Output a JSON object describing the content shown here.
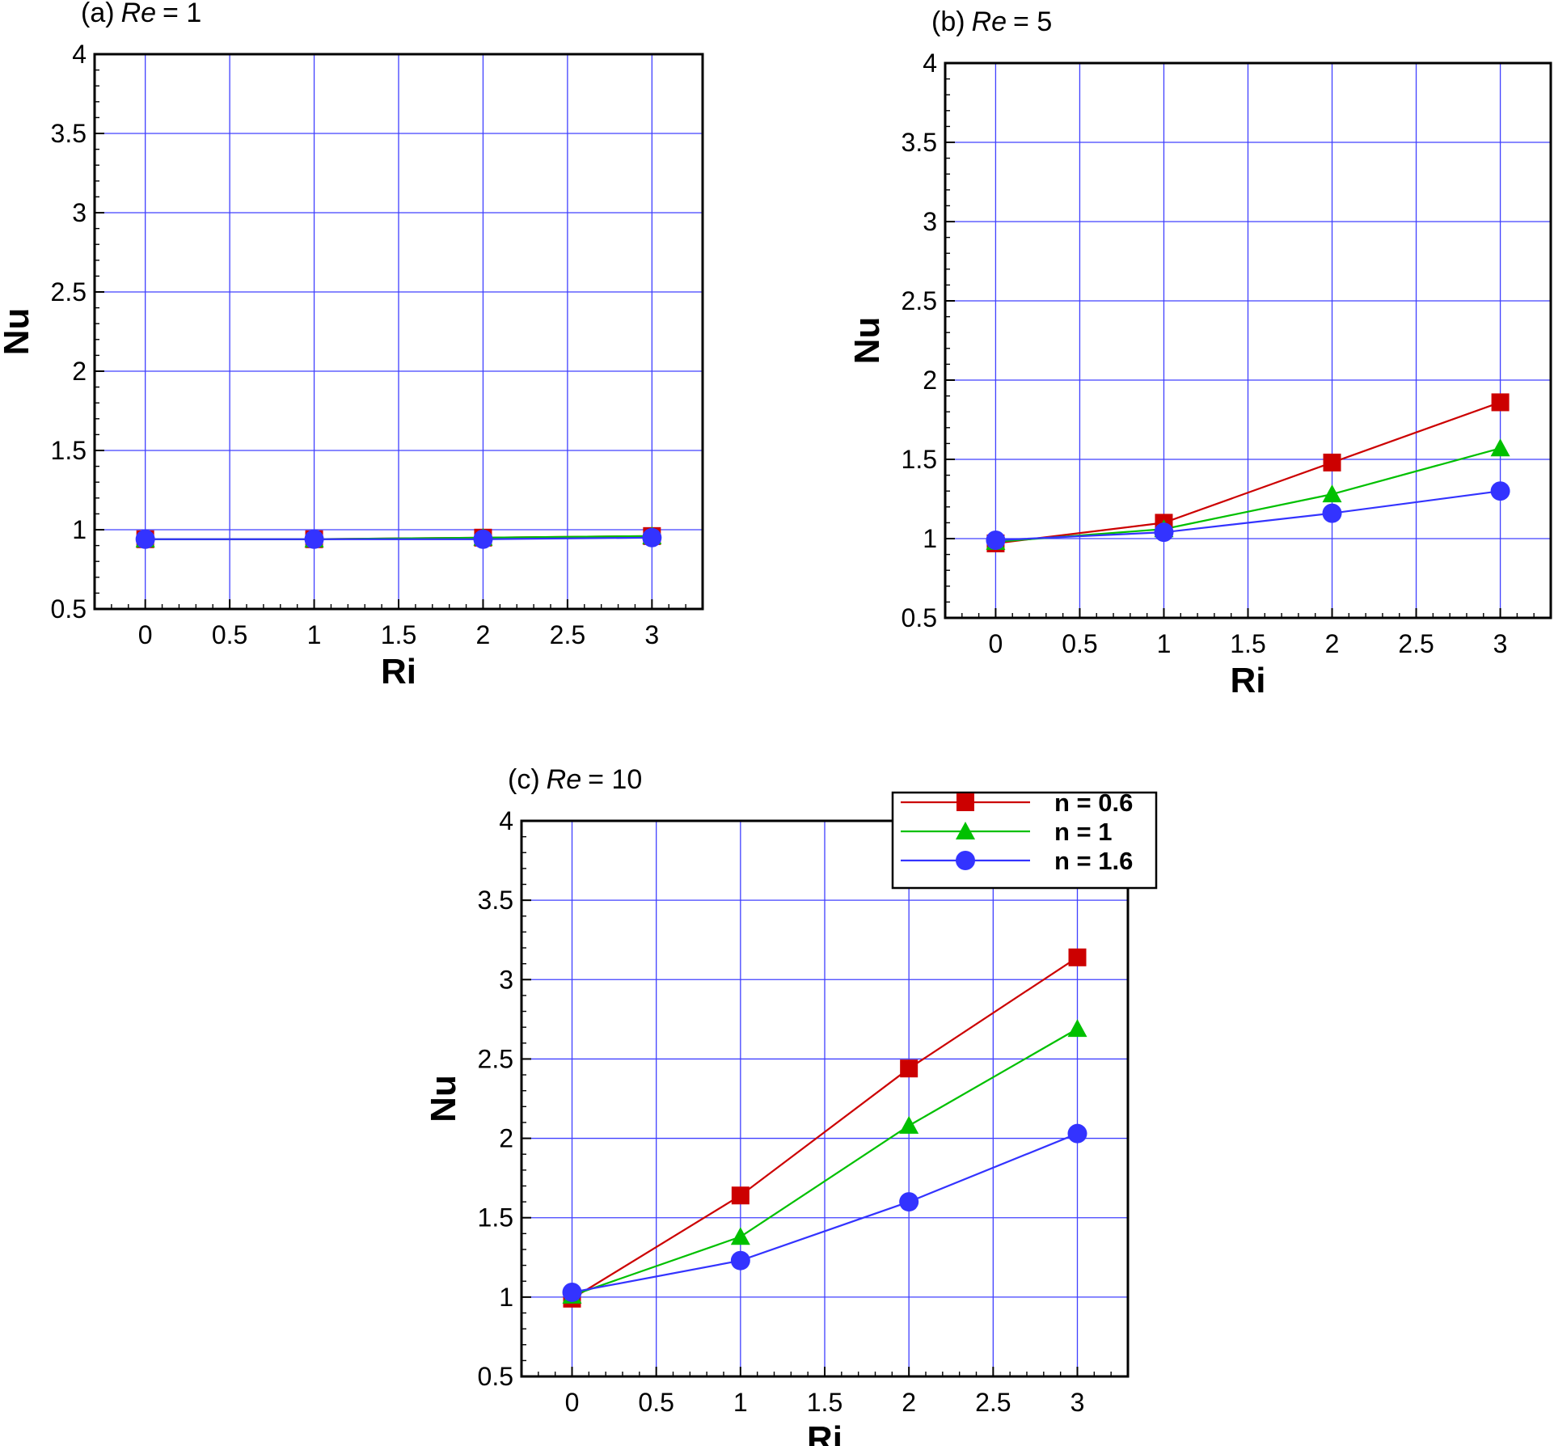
{
  "figure": {
    "legend": {
      "entries": [
        {
          "label": "n = 0.6",
          "marker": "square",
          "color": "#cc0000"
        },
        {
          "label": "n = 1",
          "marker": "triangle",
          "color": "#00c000"
        },
        {
          "label": "n = 1.6",
          "marker": "circle",
          "color": "#3333ff"
        }
      ],
      "placement": "top-right of panel (c)"
    }
  },
  "chart_data": [
    {
      "type": "line",
      "panel_prefix": "(a)",
      "panel_var": "Re",
      "panel_rest": "= 1",
      "xlabel": "Ri",
      "ylabel": "Nu",
      "xlim": [
        -0.3,
        3.3
      ],
      "ylim": [
        0.5,
        4
      ],
      "xticks": [
        "0",
        "0.5",
        "1",
        "1.5",
        "2",
        "2.5",
        "3"
      ],
      "yticks": [
        "0.5",
        "1",
        "1.5",
        "2",
        "2.5",
        "3",
        "3.5",
        "4"
      ],
      "grid": true,
      "x": [
        0,
        1,
        2,
        3
      ],
      "series": [
        {
          "name": "n = 0.6",
          "values": [
            0.94,
            0.94,
            0.95,
            0.96
          ]
        },
        {
          "name": "n = 1",
          "values": [
            0.94,
            0.94,
            0.95,
            0.96
          ]
        },
        {
          "name": "n = 1.6",
          "values": [
            0.94,
            0.94,
            0.94,
            0.95
          ]
        }
      ]
    },
    {
      "type": "line",
      "panel_prefix": "(b)",
      "panel_var": "Re",
      "panel_rest": "= 5",
      "xlabel": "Ri",
      "ylabel": "Nu",
      "xlim": [
        -0.3,
        3.3
      ],
      "ylim": [
        0.5,
        4
      ],
      "xticks": [
        "0",
        "0.5",
        "1",
        "1.5",
        "2",
        "2.5",
        "3"
      ],
      "yticks": [
        "0.5",
        "1",
        "1.5",
        "2",
        "2.5",
        "3",
        "3.5",
        "4"
      ],
      "grid": true,
      "x": [
        0,
        1,
        2,
        3
      ],
      "series": [
        {
          "name": "n = 0.6",
          "values": [
            0.97,
            1.1,
            1.48,
            1.86
          ]
        },
        {
          "name": "n = 1",
          "values": [
            0.98,
            1.06,
            1.28,
            1.57
          ]
        },
        {
          "name": "n = 1.6",
          "values": [
            0.99,
            1.04,
            1.16,
            1.3
          ]
        }
      ]
    },
    {
      "type": "line",
      "panel_prefix": "(c)",
      "panel_var": "Re",
      "panel_rest": "= 10",
      "xlabel": "Ri",
      "ylabel": "Nu",
      "xlim": [
        -0.3,
        3.3
      ],
      "ylim": [
        0.5,
        4
      ],
      "xticks": [
        "0",
        "0.5",
        "1",
        "1.5",
        "2",
        "2.5",
        "3"
      ],
      "yticks": [
        "0.5",
        "1",
        "1.5",
        "2",
        "2.5",
        "3",
        "3.5",
        "4"
      ],
      "grid": true,
      "x": [
        0,
        1,
        2,
        3
      ],
      "series": [
        {
          "name": "n = 0.6",
          "values": [
            0.99,
            1.64,
            2.44,
            3.14
          ]
        },
        {
          "name": "n = 1",
          "values": [
            1.01,
            1.38,
            2.08,
            2.69
          ]
        },
        {
          "name": "n = 1.6",
          "values": [
            1.03,
            1.23,
            1.6,
            2.03
          ]
        }
      ]
    }
  ]
}
